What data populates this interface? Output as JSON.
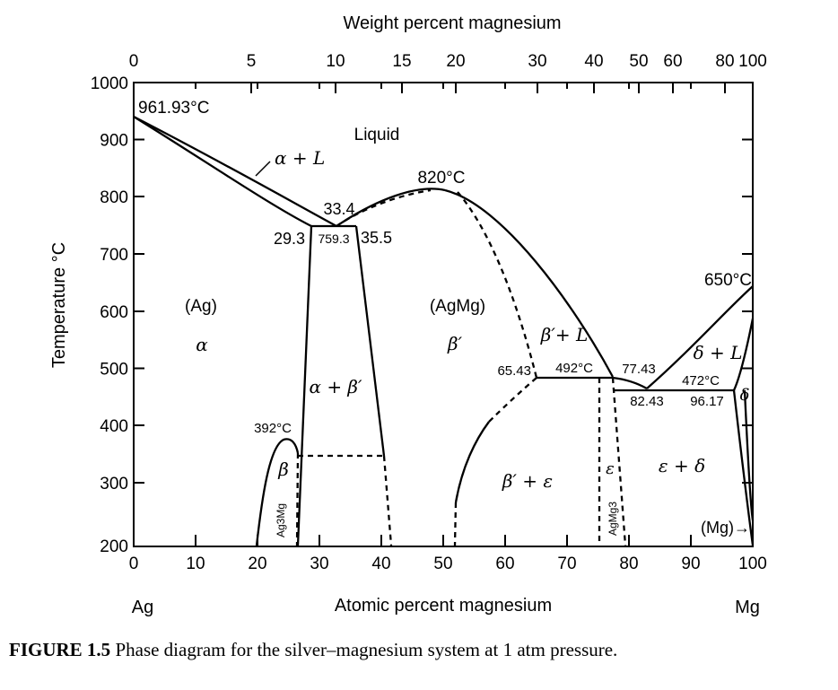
{
  "axes": {
    "top_title": "Weight percent magnesium",
    "top_ticks": [
      "0",
      "5",
      "10",
      "15",
      "20",
      "30",
      "40",
      "50",
      "60",
      "80",
      "100"
    ],
    "bottom_title": "Atomic percent magnesium",
    "bottom_ticks": [
      "0",
      "10",
      "20",
      "30",
      "40",
      "50",
      "60",
      "70",
      "80",
      "90",
      "100"
    ],
    "left_title": "Temperature °C",
    "left_ticks": [
      "1000",
      "900",
      "800",
      "700",
      "600",
      "500",
      "400",
      "300",
      "200"
    ],
    "left_end": "Ag",
    "right_end": "Mg"
  },
  "labels": {
    "ag_melt": "961.93°C",
    "liquid": "Liquid",
    "alpha_l": "α + L",
    "max_820": "820°C",
    "c33_4": "33.4",
    "c29_3": "29.3",
    "t759": "759.3",
    "c35_5": "35.5",
    "mg_melt": "650°C",
    "ag_phase": "(Ag)",
    "alpha": "α",
    "agmg_phase": "(AgMg)",
    "beta_prime": "β′",
    "beta_l": "β′+ L",
    "delta_l": "δ + L",
    "c65_43": "65.43",
    "t492": "492°C",
    "c77_43": "77.43",
    "t472": "472°C",
    "c82_43": "82.43",
    "c96_17": "96.17",
    "delta": "δ",
    "alpha_beta": "α + β′",
    "t392": "392°C",
    "beta": "β",
    "ag3mg": "Ag3Mg",
    "beta_eps": "β′ + ε",
    "eps": "ε",
    "eps_delta": "ε + δ",
    "agmg3": "AgMg3",
    "mg_phase": "(Mg)→"
  },
  "caption": {
    "number": "FIGURE 1.5",
    "text": "Phase diagram for the silver–magnesium system at 1 atm pressure."
  }
}
